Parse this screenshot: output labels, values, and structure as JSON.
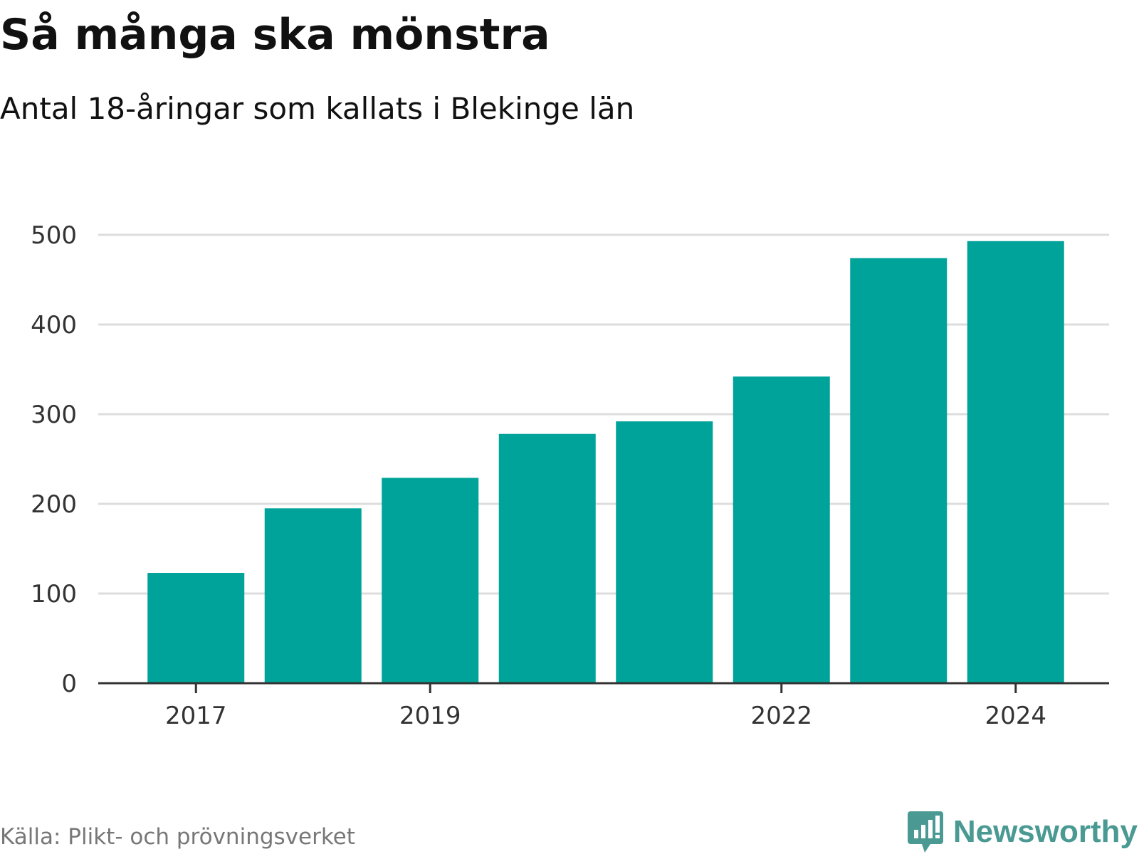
{
  "header": {
    "title": "Så många ska mönstra",
    "subtitle": "Antal 18-åringar som kallats i Blekinge län"
  },
  "footer": {
    "source": "Källa: Plikt- och prövningsverket",
    "brand": "Newsworthy",
    "brand_icon": "bar-chart-speech-bubble-icon"
  },
  "colors": {
    "bar": "#00a39a",
    "grid": "#dddddd",
    "axis": "#333333",
    "brand": "#4a9a93"
  },
  "chart_data": {
    "type": "bar",
    "title": "Så många ska mönstra",
    "subtitle": "Antal 18-åringar som kallats i Blekinge län",
    "categories": [
      "2017",
      "2018",
      "2019",
      "2020",
      "2021",
      "2022",
      "2023",
      "2024"
    ],
    "values": [
      123,
      195,
      229,
      278,
      292,
      342,
      474,
      493
    ],
    "x_tick_labels": [
      "2017",
      "2019",
      "2022",
      "2024"
    ],
    "y_ticks": [
      0,
      100,
      200,
      300,
      400,
      500
    ],
    "ylim": [
      0,
      500
    ],
    "xlabel": "",
    "ylabel": "",
    "grid": true,
    "legend": "none"
  }
}
